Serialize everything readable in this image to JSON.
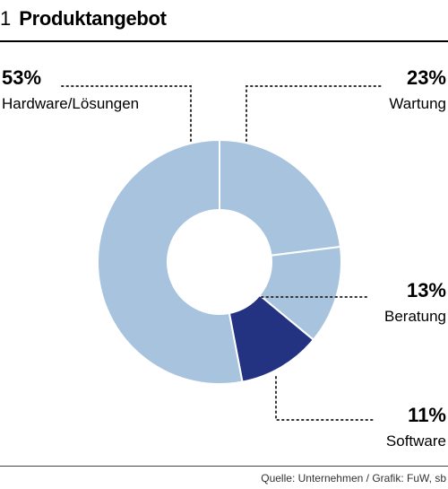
{
  "figure": {
    "number": "1",
    "title": "Produktangebot",
    "source": "Quelle: Unternehmen / Grafik: FuW, sb"
  },
  "colors": {
    "light": "#a7c3de",
    "dark": "#243282",
    "leader": "#333333"
  },
  "chart_data": {
    "type": "pie",
    "variant": "donut",
    "title": "Produktangebot",
    "categories": [
      "Wartung",
      "Beratung",
      "Software",
      "Hardware/Lösungen"
    ],
    "values": [
      23,
      13,
      11,
      53
    ],
    "unit": "%",
    "labels": [
      {
        "name": "Wartung",
        "pct_text": "23%",
        "color": "#a7c3de"
      },
      {
        "name": "Beratung",
        "pct_text": "13%",
        "color": "#a7c3de"
      },
      {
        "name": "Software",
        "pct_text": "11%",
        "color": "#243282"
      },
      {
        "name": "Hardware/Lösungen",
        "pct_text": "53%",
        "color": "#a7c3de"
      }
    ]
  }
}
